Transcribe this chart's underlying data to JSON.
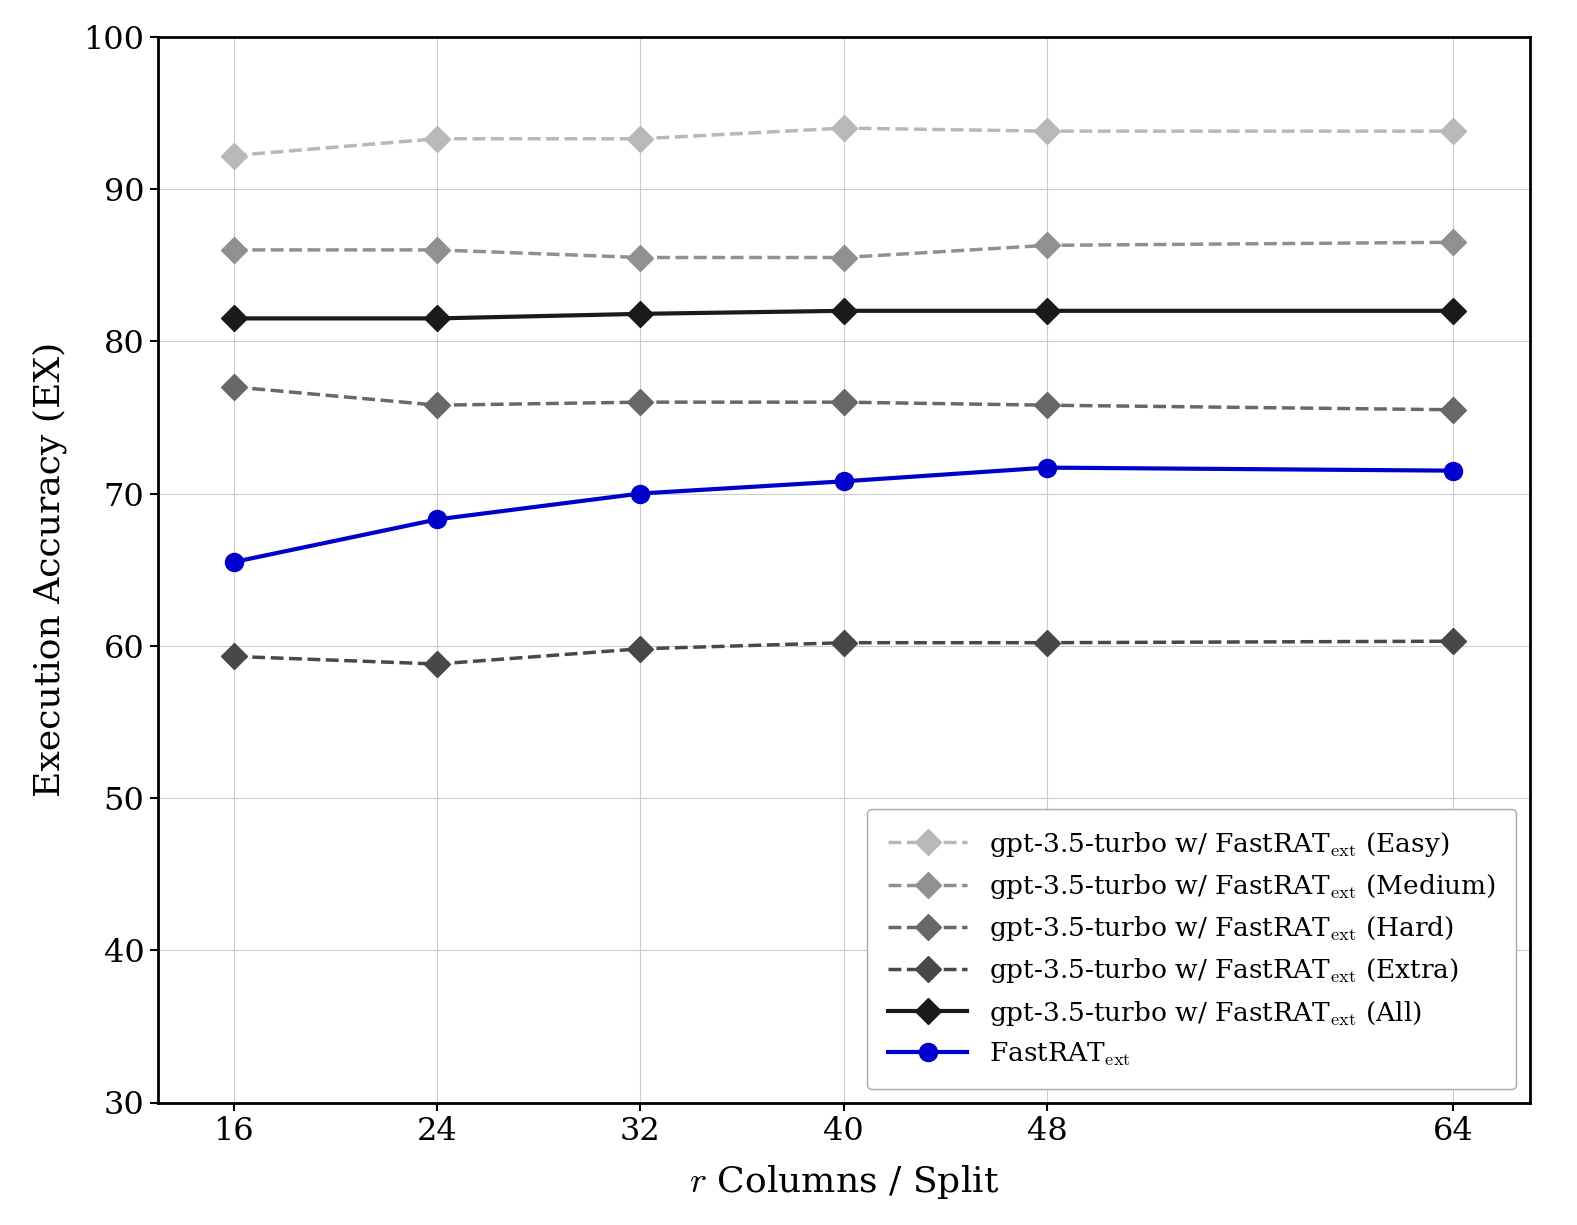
{
  "x": [
    16,
    24,
    32,
    40,
    48,
    64
  ],
  "series_order": [
    "Easy",
    "Medium",
    "Hard",
    "Extra",
    "All",
    "FastRAT"
  ],
  "series": {
    "Easy": {
      "values": [
        92.2,
        93.3,
        93.3,
        94.0,
        93.8,
        93.8
      ],
      "color": "#b8b8b8",
      "linestyle": "dashed",
      "linewidth": 2.5,
      "marker": "D",
      "markersize": 13,
      "label": "gpt-3.5-turbo w/ FastRAT$_\\mathrm{ext}$ (Easy)"
    },
    "Medium": {
      "values": [
        86.0,
        86.0,
        85.5,
        85.5,
        86.3,
        86.5
      ],
      "color": "#909090",
      "linestyle": "dashed",
      "linewidth": 2.5,
      "marker": "D",
      "markersize": 13,
      "label": "gpt-3.5-turbo w/ FastRAT$_\\mathrm{ext}$ (Medium)"
    },
    "Hard": {
      "values": [
        77.0,
        75.8,
        76.0,
        76.0,
        75.8,
        75.5
      ],
      "color": "#686868",
      "linestyle": "dashed",
      "linewidth": 2.5,
      "marker": "D",
      "markersize": 13,
      "label": "gpt-3.5-turbo w/ FastRAT$_\\mathrm{ext}$ (Hard)"
    },
    "Extra": {
      "values": [
        59.3,
        58.8,
        59.8,
        60.2,
        60.2,
        60.3
      ],
      "color": "#484848",
      "linestyle": "dashed",
      "linewidth": 2.5,
      "marker": "D",
      "markersize": 13,
      "label": "gpt-3.5-turbo w/ FastRAT$_\\mathrm{ext}$ (Extra)"
    },
    "All": {
      "values": [
        81.5,
        81.5,
        81.8,
        82.0,
        82.0,
        82.0
      ],
      "color": "#1a1a1a",
      "linestyle": "solid",
      "linewidth": 3.0,
      "marker": "D",
      "markersize": 13,
      "label": "gpt-3.5-turbo w/ FastRAT$_\\mathrm{ext}$ (All)"
    },
    "FastRAT": {
      "values": [
        65.5,
        68.3,
        70.0,
        70.8,
        71.7,
        71.5
      ],
      "color": "#0000cc",
      "linestyle": "solid",
      "linewidth": 3.0,
      "marker": "o",
      "markersize": 13,
      "label": "FastRAT$_\\mathrm{ext}$"
    }
  },
  "xlabel": "$r$ Columns / Split",
  "ylabel": "Execution Accuracy (EX)",
  "xlim": [
    13,
    67
  ],
  "ylim": [
    30,
    100
  ],
  "yticks": [
    30,
    40,
    50,
    60,
    70,
    80,
    90,
    100
  ],
  "xticks": [
    16,
    24,
    32,
    40,
    48,
    64
  ],
  "grid": true,
  "legend_loc": "lower right",
  "legend_fontsize": 19,
  "axis_label_fontsize": 26,
  "tick_fontsize": 23,
  "background_color": "#ffffff",
  "dpi": 100,
  "figsize": [
    15.77,
    12.25
  ]
}
